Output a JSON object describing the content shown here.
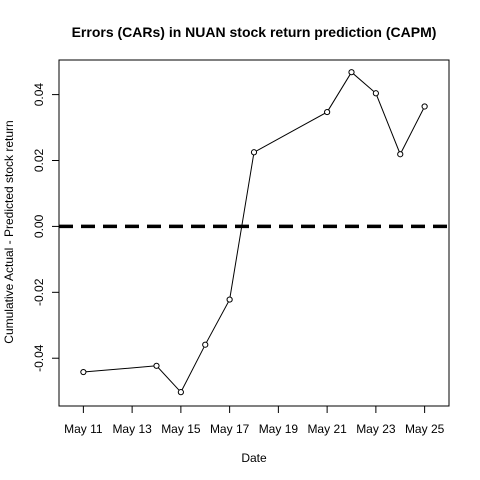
{
  "chart_data": {
    "type": "line",
    "title": "Errors (CARs) in NUAN stock return prediction (CAPM)",
    "xlabel": "Date",
    "ylabel": "Cumulative Actual - Predicted stock return",
    "x_tick_labels": [
      "May 11",
      "May 13",
      "May 15",
      "May 17",
      "May 19",
      "May 21",
      "May 23",
      "May 25"
    ],
    "x_tick_dates": [
      "2012-05-11",
      "2012-05-13",
      "2012-05-15",
      "2012-05-17",
      "2012-05-19",
      "2012-05-21",
      "2012-05-23",
      "2012-05-25"
    ],
    "y_tick_labels": [
      "-0.04",
      "-0.02",
      "0.00",
      "0.02",
      "0.04"
    ],
    "y_tick_values": [
      -0.04,
      -0.02,
      0.0,
      0.02,
      0.04
    ],
    "xlim": [
      "2012-05-10",
      "2012-05-26"
    ],
    "ylim": [
      -0.0545,
      0.0505
    ],
    "series": [
      {
        "x": [
          "2012-05-11",
          "2012-05-14",
          "2012-05-15",
          "2012-05-16",
          "2012-05-17",
          "2012-05-18",
          "2012-05-21",
          "2012-05-22",
          "2012-05-23",
          "2012-05-24",
          "2012-05-25"
        ],
        "y": [
          -0.0442,
          -0.0423,
          -0.0503,
          -0.0359,
          -0.0222,
          0.0225,
          0.0347,
          0.0468,
          0.0404,
          0.0219,
          0.0364
        ]
      }
    ],
    "reference_line": {
      "y": 0.0,
      "style": "dashed"
    },
    "grid": false,
    "legend": "none",
    "colors": {
      "line": "#000000",
      "marker_fill": "#ffffff",
      "axis": "#000000"
    }
  }
}
